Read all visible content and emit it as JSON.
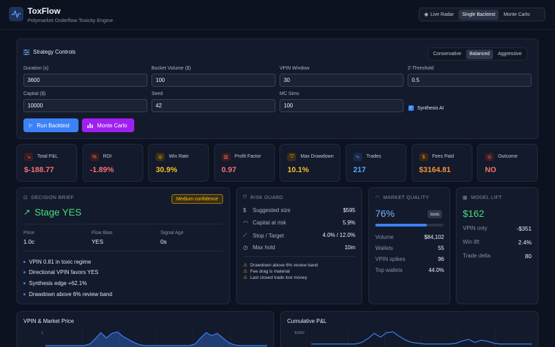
{
  "header": {
    "title": "ToxFlow",
    "subtitle": "Polymarket Orderflow Toxicity Engine",
    "modes": [
      "Live Radar",
      "Single Backtest",
      "Monte Carlo"
    ],
    "active_mode": "Single Backtest"
  },
  "controls": {
    "title": "Strategy Controls",
    "presets": [
      "Conservative",
      "Balanced",
      "Aggressive"
    ],
    "active_preset": "Balanced",
    "fields": {
      "duration": {
        "label": "Duration (s)",
        "value": "3600"
      },
      "bucket_volume": {
        "label": "Bucket Volume ($)",
        "value": "100"
      },
      "vpin_window": {
        "label": "VPIN Window",
        "value": "30"
      },
      "z_threshold": {
        "label": "Z-Threshold",
        "value": "0.5"
      },
      "capital": {
        "label": "Capital ($)",
        "value": "10000"
      },
      "seed": {
        "label": "Seed",
        "value": "42"
      },
      "mc_sims": {
        "label": "MC Sims",
        "value": "100"
      }
    },
    "synthesis_label": "Synthesis AI",
    "synthesis_checked": true,
    "run_label": "Run Backtest",
    "mc_label": "Monte Carlo"
  },
  "kpis": [
    {
      "label": "Total P&L",
      "value": "$-188.77",
      "color": "#f87171",
      "icon_bg": "#3a1c22",
      "icon_color": "#f87171",
      "icon": "trend-down-icon"
    },
    {
      "label": "ROI",
      "value": "-1.89%",
      "color": "#f87171",
      "icon_bg": "#3a1c22",
      "icon_color": "#f87171",
      "icon": "percent-icon"
    },
    {
      "label": "Win Rate",
      "value": "30.9%",
      "color": "#fbbf24",
      "icon_bg": "#3a2e14",
      "icon_color": "#fbbf24",
      "icon": "target-icon"
    },
    {
      "label": "Profit Factor",
      "value": "0.97",
      "color": "#f87171",
      "icon_bg": "#3a1c22",
      "icon_color": "#f87171",
      "icon": "bar-chart-icon"
    },
    {
      "label": "Max Drawdown",
      "value": "10.1%",
      "color": "#fbbf24",
      "icon_bg": "#3a2e14",
      "icon_color": "#fbbf24",
      "icon": "shield-icon"
    },
    {
      "label": "Trades",
      "value": "217",
      "color": "#60a5fa",
      "icon_bg": "#1a2a46",
      "icon_color": "#60a5fa",
      "icon": "activity-icon"
    },
    {
      "label": "Fees Paid",
      "value": "$3164.81",
      "color": "#fb923c",
      "icon_bg": "#3a2614",
      "icon_color": "#fb923c",
      "icon": "dollar-icon"
    },
    {
      "label": "Outcome",
      "value": "NO",
      "color": "#f87171",
      "icon_bg": "#3a1c22",
      "icon_color": "#f87171",
      "icon": "target-icon"
    }
  ],
  "decision": {
    "header": "DECISION BRIEF",
    "badge": "Medium confidence",
    "headline": "Stage YES",
    "stats": [
      {
        "label": "Price",
        "value": "1.0c"
      },
      {
        "label": "Flow Bias",
        "value": "YES"
      },
      {
        "label": "Signal Age",
        "value": "0s"
      }
    ],
    "bullets": [
      "VPIN 0.81 in toxic regime",
      "Directional VPIN favors YES",
      "Synthesis edge +62.1%",
      "Drawdown above 6% review band"
    ]
  },
  "risk": {
    "header": "RISK GUARD",
    "rows": [
      {
        "label": "Suggested size",
        "value": "$595",
        "icon": "dollar-icon"
      },
      {
        "label": "Capital at risk",
        "value": "5.9%",
        "icon": "gauge-icon"
      },
      {
        "label": "Stop / Target",
        "value": "4.0% / 12.0%",
        "icon": "trend-icon"
      },
      {
        "label": "Max hold",
        "value": "10m",
        "icon": "clock-icon"
      }
    ],
    "warnings": [
      "Drawdown above 6% review band",
      "Fee drag is material",
      "Last closed trade lost money"
    ]
  },
  "market": {
    "header": "MARKET QUALITY",
    "score": "76%",
    "score_fraction": 0.76,
    "tag": "toxic",
    "rows": [
      {
        "label": "Volume",
        "value": "$84,102"
      },
      {
        "label": "Wallets",
        "value": "55"
      },
      {
        "label": "VPIN spikes",
        "value": "96"
      },
      {
        "label": "Top wallets",
        "value": "44.0%"
      }
    ]
  },
  "model": {
    "header": "MODEL LIFT",
    "value": "$162",
    "rows": [
      {
        "label": "VPIN only",
        "value": "-$351"
      },
      {
        "label": "Win lift",
        "value": "2.4%"
      },
      {
        "label": "Trade delta",
        "value": "80"
      }
    ]
  },
  "charts": {
    "vpin_title": "VPIN & Market Price",
    "vpin_y_label": "1",
    "pnl_title": "Cumulative P&L",
    "pnl_y_label": "$1000"
  },
  "chart_data": [
    {
      "type": "area",
      "title": "VPIN & Market Price",
      "yticks": [
        "1"
      ],
      "series": [
        {
          "values": [
            0.1,
            0.1,
            0.1,
            0.1,
            0.1,
            0.1,
            0.1,
            0.1,
            0.2,
            0.55,
            0.95,
            0.6,
            0.9,
            1.0,
            0.7,
            0.5,
            0.3,
            0.15,
            0.1,
            0.1,
            0.1,
            0.1,
            0.1,
            0.1,
            0.1,
            0.1,
            0.1,
            0.2,
            0.6,
            0.95,
            0.75,
            0.9,
            0.6,
            0.3,
            0.15,
            0.1,
            0.1,
            0.1,
            0.1,
            0.1,
            0.1
          ]
        }
      ]
    },
    {
      "type": "line",
      "title": "Cumulative P&L",
      "yticks": [
        "$1000"
      ],
      "series": [
        {
          "values": [
            200,
            200,
            200,
            200,
            200,
            200,
            200,
            200,
            300,
            550,
            900,
            650,
            950,
            1000,
            700,
            450,
            300,
            250,
            200,
            200,
            200,
            200,
            200,
            250,
            400,
            500,
            300,
            450,
            380,
            250,
            200,
            200,
            200,
            200,
            200,
            200
          ]
        }
      ]
    }
  ]
}
